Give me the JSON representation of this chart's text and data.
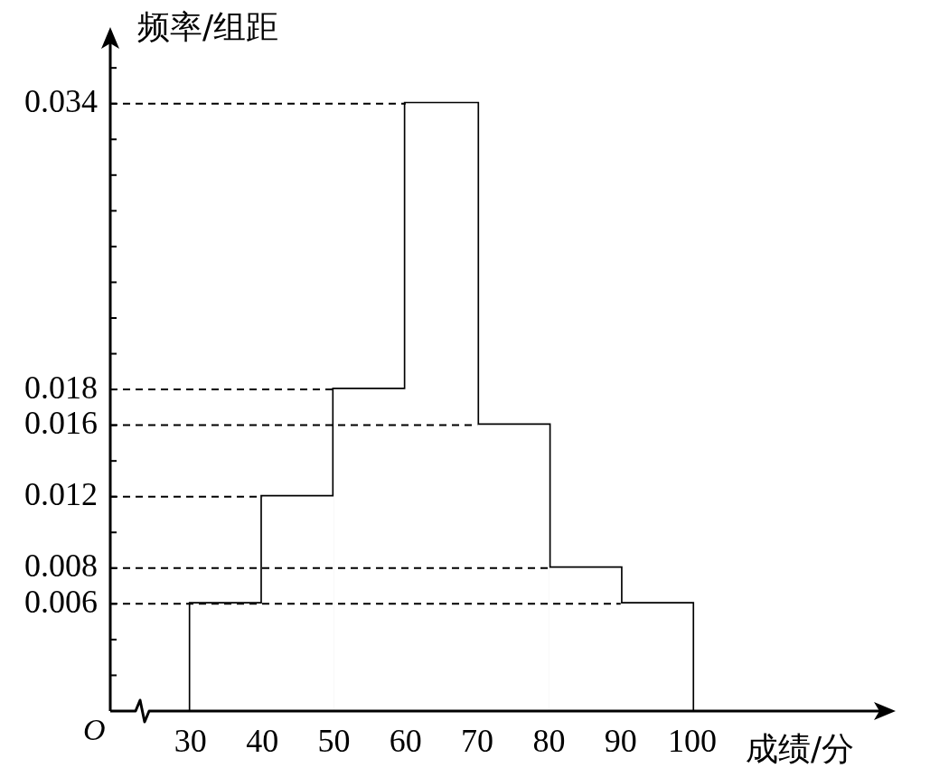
{
  "chart_data": {
    "type": "histogram",
    "xlabel": "成绩/分",
    "ylabel": "频率/组距",
    "bins": [
      30,
      40,
      50,
      60,
      70,
      80,
      90,
      100
    ],
    "values": [
      0.006,
      0.012,
      0.018,
      0.034,
      0.016,
      0.008,
      0.006
    ],
    "color": "#ffffff",
    "xlim": [
      18.8,
      127.6
    ],
    "xticks": [
      30,
      40,
      50,
      60,
      70,
      80,
      90,
      100
    ],
    "ylim": [
      0,
      0.038
    ],
    "yticks": [
      {
        "value": 0.002,
        "label": null
      },
      {
        "value": 0.004,
        "label": null
      },
      {
        "value": 0.006,
        "label": "0.006"
      },
      {
        "value": 0.008,
        "label": "0.008"
      },
      {
        "value": 0.01,
        "label": null
      },
      {
        "value": 0.012,
        "label": "0.012"
      },
      {
        "value": 0.014,
        "label": null
      },
      {
        "value": 0.016,
        "label": "0.016"
      },
      {
        "value": 0.018,
        "label": "0.018"
      },
      {
        "value": 0.02,
        "label": null
      },
      {
        "value": 0.022,
        "label": null
      },
      {
        "value": 0.024,
        "label": null
      },
      {
        "value": 0.026,
        "label": null
      },
      {
        "value": 0.028,
        "label": null
      },
      {
        "value": 0.03,
        "label": null
      },
      {
        "value": 0.032,
        "label": null
      },
      {
        "value": 0.034,
        "label": "0.034"
      },
      {
        "value": 0.036,
        "label": null
      }
    ],
    "ref_lines": [
      {
        "axis": "y",
        "value": 0.034,
        "line_style": "dashed"
      },
      {
        "axis": "y",
        "value": 0.018,
        "line_style": "dashed"
      },
      {
        "axis": "y",
        "value": 0.016,
        "line_style": "dashed"
      },
      {
        "axis": "y",
        "value": 0.012,
        "line_style": "dashed"
      },
      {
        "axis": "y",
        "value": 0.008,
        "line_style": "dashed"
      },
      {
        "axis": "y",
        "value": 0.006,
        "line_style": "dashed"
      }
    ],
    "annotations": [
      "O"
    ],
    "grid": false,
    "legend": false
  }
}
